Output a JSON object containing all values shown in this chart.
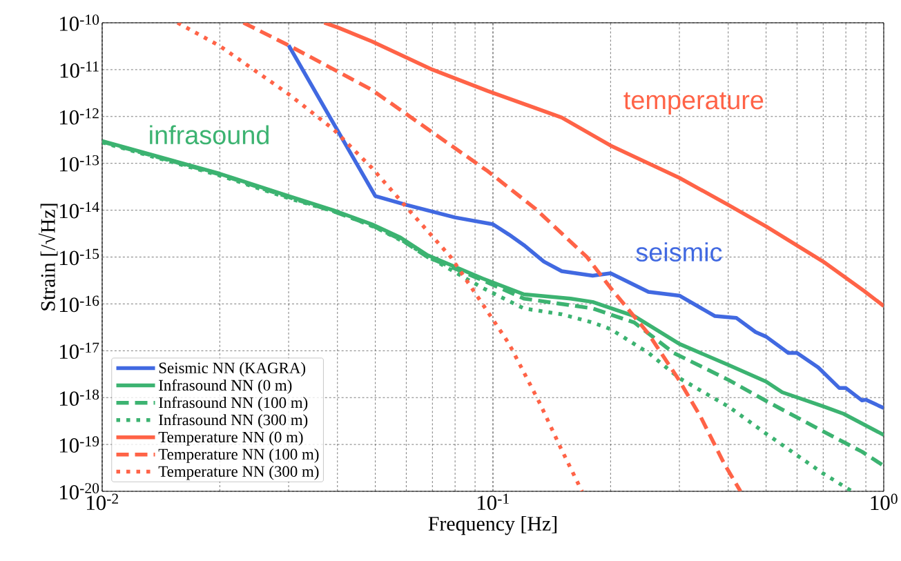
{
  "chart_data": {
    "type": "line",
    "xlabel": "Frequency [Hz]",
    "ylabel": "Strain [/√Hz]",
    "log": "xy",
    "grid": true,
    "legend": "bottom left",
    "xlim": [
      0.01,
      1
    ],
    "ylim": [
      1e-20,
      1e-10
    ],
    "xticks": [
      {
        "value": 0.01,
        "label": "10$^{-2}$"
      },
      {
        "value": 0.1,
        "label": "10$^{-1}$"
      },
      {
        "value": 1,
        "label": "10$^{0}$"
      }
    ],
    "yticks": [
      {
        "value": 1e-20,
        "label": "10$^{-20}$"
      },
      {
        "value": 1e-19,
        "label": "10$^{-19}$"
      },
      {
        "value": 1e-18,
        "label": "10$^{-18}$"
      },
      {
        "value": 1e-17,
        "label": "10$^{-17}$"
      },
      {
        "value": 1e-16,
        "label": "10$^{-16}$"
      },
      {
        "value": 1e-15,
        "label": "10$^{-15}$"
      },
      {
        "value": 1e-14,
        "label": "10$^{-14}$"
      },
      {
        "value": 1e-13,
        "label": "10$^{-13}$"
      },
      {
        "value": 1e-12,
        "label": "10$^{-12}$"
      },
      {
        "value": 1e-11,
        "label": "10$^{-11}$"
      },
      {
        "value": 1e-10,
        "label": "10$^{-10}$"
      }
    ],
    "series": [
      {
        "name": "Seismic NN (KAGRA)",
        "color": "#4169e1",
        "line_style": "solid",
        "x": [
          0.03,
          0.05,
          0.06,
          0.08,
          0.1,
          0.11,
          0.12,
          0.135,
          0.15,
          0.18,
          0.2,
          0.25,
          0.3,
          0.37,
          0.42,
          0.47,
          0.5,
          0.57,
          0.6,
          0.68,
          0.77,
          0.8,
          0.88,
          0.9,
          1.0
        ],
        "values": [
          3.3e-11,
          2e-14,
          1.3e-14,
          7e-15,
          5e-15,
          3e-15,
          1.8e-15,
          8e-16,
          5e-16,
          4e-16,
          4.5e-16,
          1.8e-16,
          1.5e-16,
          5.5e-17,
          5e-17,
          2.5e-17,
          2e-17,
          9e-18,
          9e-18,
          4.4e-18,
          1.6e-18,
          1.6e-18,
          8.7e-19,
          9e-19,
          6e-19
        ]
      },
      {
        "name": "Infrasound NN (0 m)",
        "color": "#3cb371",
        "line_style": "solid",
        "x": [
          0.01,
          0.02,
          0.03,
          0.039,
          0.049,
          0.058,
          0.068,
          0.094,
          0.12,
          0.158,
          0.18,
          0.23,
          0.3,
          0.4,
          0.5,
          0.55,
          0.7,
          0.79,
          1.0
        ],
        "values": [
          3e-13,
          6e-14,
          2e-14,
          1e-14,
          5e-15,
          2.6e-15,
          1.1e-15,
          3.5e-16,
          1.6e-16,
          1.3e-16,
          1.1e-16,
          5.5e-17,
          1.4e-17,
          5e-18,
          2.2e-18,
          1.3e-18,
          6.5e-19,
          4.5e-19,
          1.6e-19
        ]
      },
      {
        "name": "Infrasound NN (100 m)",
        "color": "#3cb371",
        "line_style": "dashed",
        "x": [
          0.01,
          0.02,
          0.03,
          0.039,
          0.049,
          0.058,
          0.068,
          0.094,
          0.12,
          0.18,
          0.23,
          0.29,
          0.4,
          0.5,
          0.7,
          0.88,
          1.0
        ],
        "values": [
          2.9e-13,
          5.8e-14,
          1.9e-14,
          9.5e-15,
          4.7e-15,
          2.4e-15,
          1e-15,
          3.2e-16,
          1.3e-16,
          8e-17,
          4e-17,
          9e-18,
          2.4e-18,
          8.5e-19,
          1.9e-19,
          7e-20,
          3.5e-20
        ]
      },
      {
        "name": "Infrasound NN (300 m)",
        "color": "#3cb371",
        "line_style": "dotted",
        "x": [
          0.01,
          0.02,
          0.03,
          0.04,
          0.05,
          0.06,
          0.07,
          0.094,
          0.12,
          0.15,
          0.18,
          0.2,
          0.25,
          0.3,
          0.4,
          0.5,
          0.7,
          0.83
        ],
        "values": [
          2.8e-13,
          5.5e-14,
          1.8e-14,
          9e-15,
          4.3e-15,
          2e-15,
          9e-16,
          2.2e-16,
          8e-17,
          6e-17,
          4e-17,
          2.9e-17,
          9e-18,
          2.6e-18,
          6.5e-19,
          1.7e-19,
          2.4e-20,
          1e-20
        ]
      },
      {
        "name": "Temperature NN (0 m)",
        "color": "#ff6347",
        "line_style": "solid",
        "x": [
          0.037,
          0.04,
          0.049,
          0.07,
          0.097,
          0.15,
          0.2,
          0.3,
          0.4,
          0.5,
          0.7,
          0.89,
          1.0
        ],
        "values": [
          1e-10,
          8e-11,
          4e-11,
          1e-11,
          3.5e-12,
          9.5e-13,
          2.4e-13,
          4.9e-14,
          1.3e-14,
          4.5e-15,
          8e-16,
          1.9e-16,
          9e-17
        ]
      },
      {
        "name": "Temperature NN (100 m)",
        "color": "#ff6347",
        "line_style": "dashed",
        "x": [
          0.023,
          0.03,
          0.049,
          0.097,
          0.128,
          0.174,
          0.2,
          0.25,
          0.3,
          0.34,
          0.39,
          0.43
        ],
        "values": [
          1e-10,
          3.3e-11,
          3.7e-12,
          6.8e-14,
          1.1e-14,
          1e-15,
          2.2e-16,
          2.3e-17,
          2.3e-18,
          3.9e-19,
          4e-20,
          1e-20
        ]
      },
      {
        "name": "Temperature NN (300 m)",
        "color": "#ff6347",
        "line_style": "dotted",
        "x": [
          0.0156,
          0.02,
          0.03,
          0.039,
          0.049,
          0.061,
          0.078,
          0.094,
          0.11,
          0.132,
          0.149,
          0.169
        ],
        "values": [
          1e-10,
          3.2e-11,
          3e-12,
          5.4e-13,
          8e-14,
          1e-14,
          1e-15,
          1e-16,
          1.4e-17,
          7.4e-19,
          8.5e-20,
          1e-20
        ]
      }
    ],
    "annotations": [
      "infrasound",
      "temperature",
      "seismic"
    ]
  }
}
